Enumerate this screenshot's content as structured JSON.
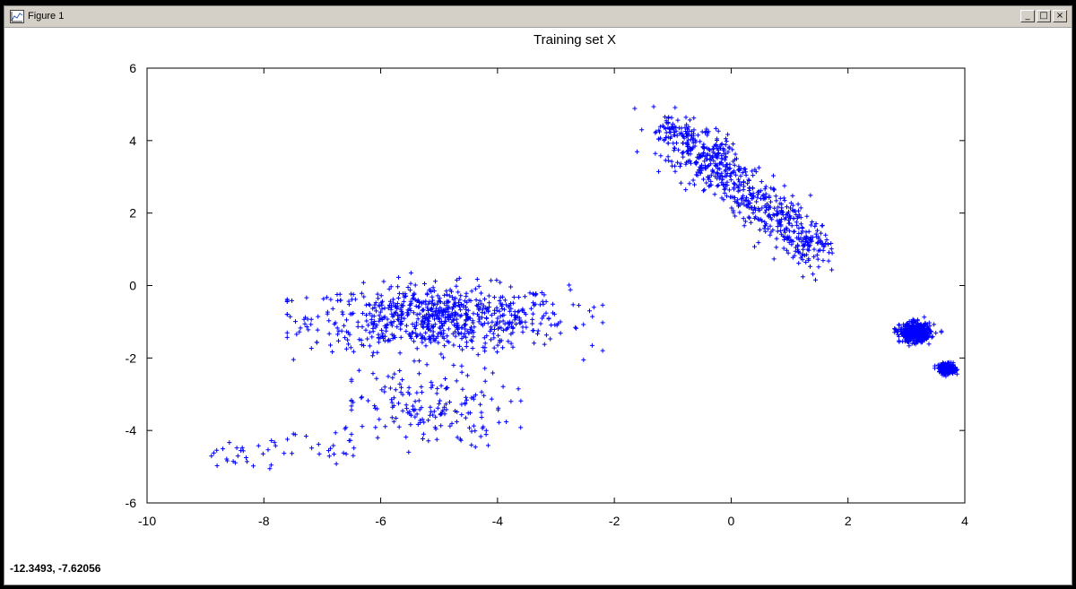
{
  "window": {
    "title": "Figure 1",
    "controls": {
      "minimize": "_",
      "maximize": "□",
      "close": "×"
    }
  },
  "status": {
    "coordinates": "-12.3493, -7.62056"
  },
  "chart_data": {
    "type": "scatter",
    "title": "Training set X",
    "xlabel": "",
    "ylabel": "",
    "xlim": [
      -10,
      4
    ],
    "ylim": [
      -6,
      6
    ],
    "xticks": [
      -10,
      -8,
      -6,
      -4,
      -2,
      0,
      2,
      4
    ],
    "yticks": [
      -6,
      -4,
      -2,
      0,
      2,
      4,
      6
    ],
    "grid": false,
    "legend": "none",
    "marker": "+",
    "marker_color": "#0000ff",
    "clusters": [
      {
        "center": [
          -5.0,
          -0.9
        ],
        "spread": [
          1.1,
          0.45
        ],
        "count": 750,
        "shape": "band",
        "extent_x": [
          -7.6,
          -2.2
        ],
        "extent_y": [
          -2.6,
          0.35
        ]
      },
      {
        "center": [
          -5.2,
          -3.4
        ],
        "spread": [
          0.7,
          0.55
        ],
        "count": 170,
        "shape": "blob",
        "extent_x": [
          -6.5,
          -3.6
        ],
        "extent_y": [
          -4.6,
          -2.2
        ]
      },
      {
        "center": [
          -7.5,
          -4.4
        ],
        "spread": [
          0.75,
          0.25
        ],
        "count": 50,
        "shape": "tail",
        "extent_x": [
          -8.9,
          -6.4
        ],
        "extent_y": [
          -4.9,
          -3.7
        ]
      },
      {
        "center": [
          0.3,
          2.8
        ],
        "spread": [
          0.5,
          0.6
        ],
        "count": 700,
        "shape": "diagonal",
        "from": [
          -1.1,
          4.4
        ],
        "to": [
          1.5,
          0.9
        ]
      },
      {
        "center": [
          3.15,
          -1.3
        ],
        "spread": [
          0.13,
          0.13
        ],
        "count": 500,
        "shape": "blob",
        "extent_x": [
          2.8,
          3.6
        ],
        "extent_y": [
          -1.9,
          -0.7
        ]
      },
      {
        "center": [
          3.7,
          -2.3
        ],
        "spread": [
          0.07,
          0.07
        ],
        "count": 300,
        "shape": "blob",
        "extent_x": [
          3.4,
          3.9
        ],
        "extent_y": [
          -2.6,
          -1.9
        ]
      }
    ]
  }
}
